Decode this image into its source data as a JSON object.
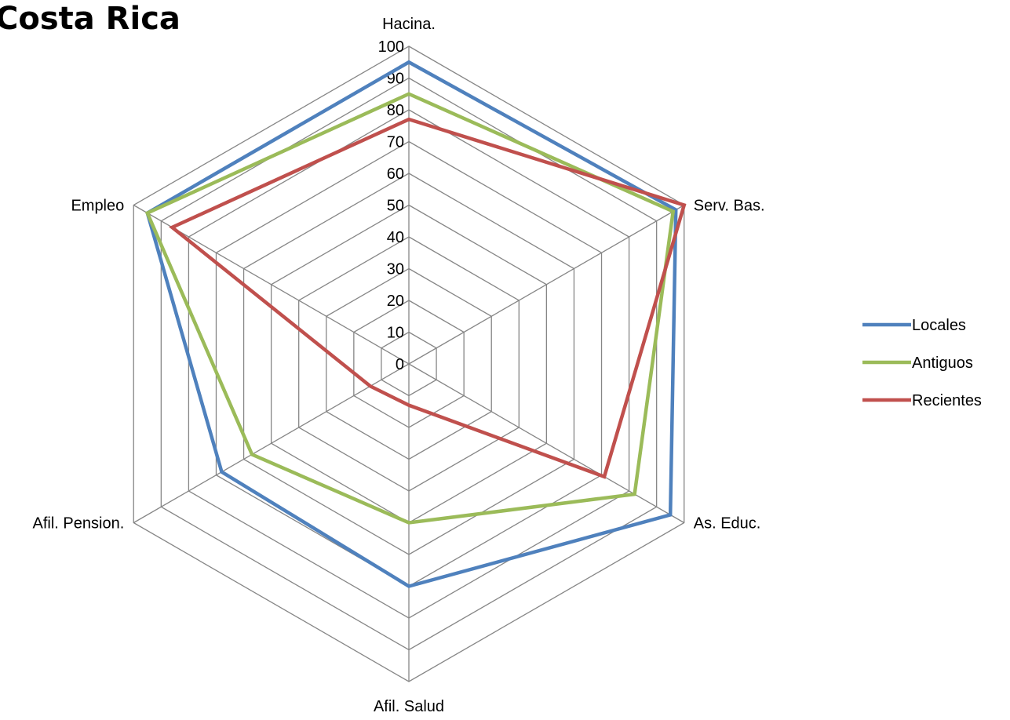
{
  "title": "Costa Rica",
  "chart_data": {
    "type": "radar",
    "title": "Costa Rica",
    "axes": [
      "Hacina.",
      "Serv. Bas.",
      "As. Educ.",
      "Afil. Salud",
      "Afil. Pension.",
      "Empleo"
    ],
    "rlim": [
      0,
      100
    ],
    "ticks": [
      0,
      10,
      20,
      30,
      40,
      50,
      60,
      70,
      80,
      90,
      100
    ],
    "grid": true,
    "legend_position": "right",
    "series": [
      {
        "name": "Locales",
        "color": "#4F81BD",
        "values": [
          95,
          97,
          95,
          70,
          68,
          95
        ]
      },
      {
        "name": "Antiguos",
        "color": "#9BBB59",
        "values": [
          85,
          96,
          82,
          50,
          57,
          95
        ]
      },
      {
        "name": "Recientes",
        "color": "#C0504D",
        "values": [
          77,
          100,
          71,
          13,
          14,
          86
        ]
      }
    ]
  }
}
